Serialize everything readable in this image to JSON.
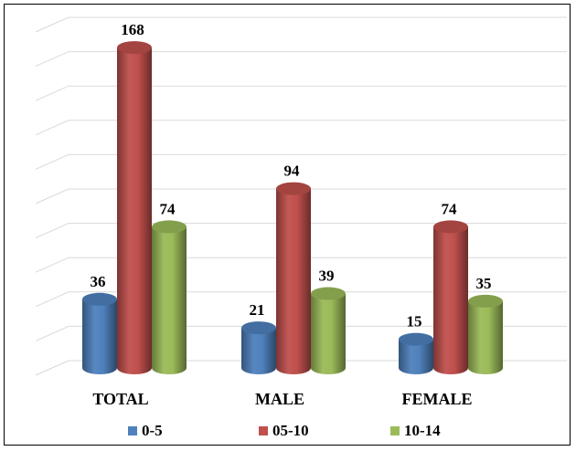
{
  "chart_data": {
    "type": "bar",
    "title": "",
    "xlabel": "",
    "ylabel": "",
    "categories": [
      "TOTAL",
      "MALE",
      "FEMALE"
    ],
    "series": [
      {
        "name": "0-5",
        "values": [
          36,
          21,
          15
        ],
        "color": "#4F81BD"
      },
      {
        "name": "05-10",
        "values": [
          168,
          94,
          74
        ],
        "color": "#C0504D"
      },
      {
        "name": "10-14",
        "values": [
          74,
          39,
          35
        ],
        "color": "#9BBB59"
      }
    ],
    "ylim": [
      0,
      180
    ],
    "grid": true,
    "legend": "bottom",
    "style": "3d-cylinder"
  }
}
